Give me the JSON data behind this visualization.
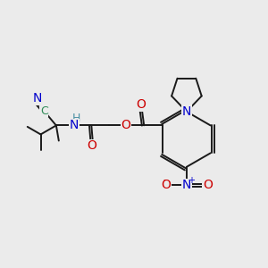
{
  "background_color": "#ebebeb",
  "bond_color": "#1a1a1a",
  "bond_width": 1.4,
  "atom_colors": {
    "N": "#0000cc",
    "O": "#cc0000",
    "C": "#2e8b57",
    "H": "#4a90a4"
  },
  "figsize": [
    3.0,
    3.0
  ],
  "dpi": 100
}
